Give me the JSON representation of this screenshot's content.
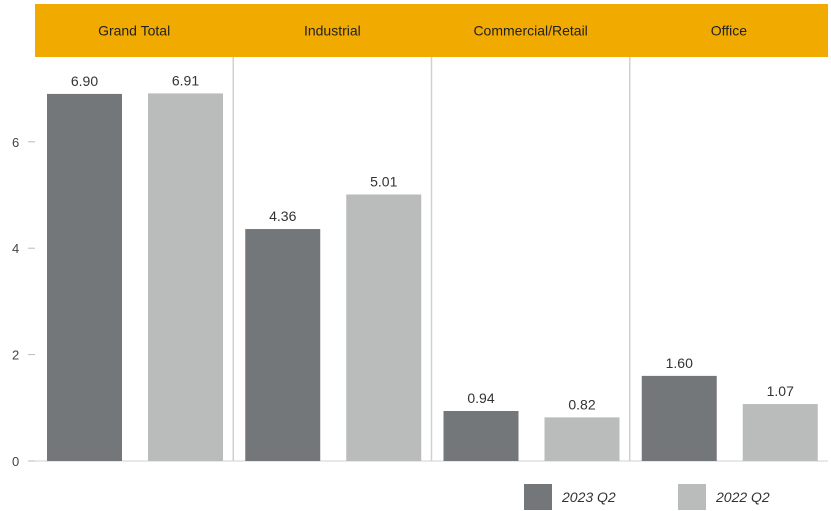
{
  "chart_data": {
    "type": "bar",
    "facets": [
      "Grand Total",
      "Industrial",
      "Commercial/Retail",
      "Office"
    ],
    "series": [
      {
        "name": "2023 Q2",
        "values": [
          6.9,
          4.36,
          0.94,
          1.6
        ],
        "labels": [
          "6.90",
          "4.36",
          "0.94",
          "1.60"
        ],
        "color": "#74777A"
      },
      {
        "name": "2022 Q2",
        "values": [
          6.91,
          5.01,
          0.82,
          1.07
        ],
        "labels": [
          "6.91",
          "5.01",
          "0.82",
          "1.07"
        ],
        "color": "#BABBBB"
      }
    ],
    "yticks": [
      0,
      2,
      4,
      6
    ],
    "ylim": [
      0,
      7.5
    ],
    "grid": false,
    "legend_position": "bottom-right",
    "header_color": "#F0AA00",
    "divider_color": "#D0D0D0"
  }
}
